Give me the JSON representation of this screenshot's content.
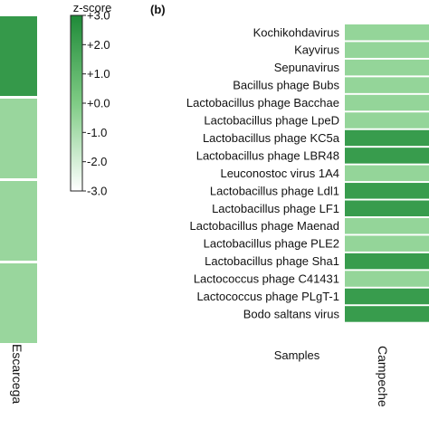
{
  "panel_b_label": "(b)",
  "chart_data": [
    {
      "type": "heatmap",
      "panel": "a",
      "note": "partially cropped at left edge",
      "columns": [
        "Escarcega"
      ],
      "rows": 4,
      "values": [
        2.3,
        -0.6,
        -0.6,
        -0.6
      ]
    },
    {
      "type": "colorbar",
      "title": "z-score",
      "ticks": [
        "+3.0",
        "+2.0",
        "+1.0",
        "+0.0",
        "-1.0",
        "-2.0",
        "-3.0"
      ],
      "range": [
        -3.0,
        3.0
      ],
      "colors": {
        "low": "#ffffff",
        "mid": "#7fcc85",
        "high": "#1e8a38"
      }
    },
    {
      "type": "heatmap",
      "panel": "b",
      "xlabel": "Samples",
      "columns": [
        "Campeche"
      ],
      "rows": [
        "Kochikohdavirus",
        "Kayvirus",
        "Sepunavirus",
        "Bacillus phage Bubs",
        "Lactobacillus phage Bacchae",
        "Lactobacillus phage LpeD",
        "Lactobacillus phage KC5a",
        "Lactobacillus phage LBR48",
        "Leuconostoc virus 1A4",
        "Lactobacillus phage Ldl1",
        "Lactobacillus phage LF1",
        "Lactobacillus phage Maenad",
        "Lactobacillus phage PLE2",
        "Lactobacillus phage Sha1",
        "Lactococcus phage C41431",
        "Lactococcus phage PLgT-1",
        "Bodo saltans virus"
      ],
      "values": [
        -0.5,
        -0.5,
        -0.5,
        -0.5,
        -0.5,
        -0.5,
        2.2,
        2.2,
        -0.5,
        2.2,
        2.2,
        -0.5,
        -0.5,
        2.2,
        -0.5,
        2.2,
        2.2
      ]
    }
  ]
}
